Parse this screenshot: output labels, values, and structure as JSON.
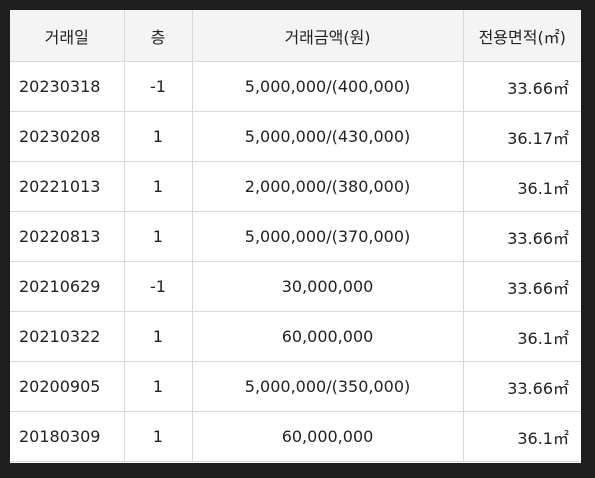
{
  "table": {
    "headers": [
      "거래일",
      "층",
      "거래금액(원)",
      "전용면적(㎡)"
    ],
    "rows": [
      {
        "date": "20230318",
        "floor": "-1",
        "price": "5,000,000/(400,000)",
        "area": "33.66㎡"
      },
      {
        "date": "20230208",
        "floor": "1",
        "price": "5,000,000/(430,000)",
        "area": "36.17㎡"
      },
      {
        "date": "20221013",
        "floor": "1",
        "price": "2,000,000/(380,000)",
        "area": "36.1㎡"
      },
      {
        "date": "20220813",
        "floor": "1",
        "price": "5,000,000/(370,000)",
        "area": "33.66㎡"
      },
      {
        "date": "20210629",
        "floor": "-1",
        "price": "30,000,000",
        "area": "33.66㎡"
      },
      {
        "date": "20210322",
        "floor": "1",
        "price": "60,000,000",
        "area": "36.1㎡"
      },
      {
        "date": "20200905",
        "floor": "1",
        "price": "5,000,000/(350,000)",
        "area": "33.66㎡"
      },
      {
        "date": "20180309",
        "floor": "1",
        "price": "60,000,000",
        "area": "36.1㎡"
      }
    ]
  }
}
